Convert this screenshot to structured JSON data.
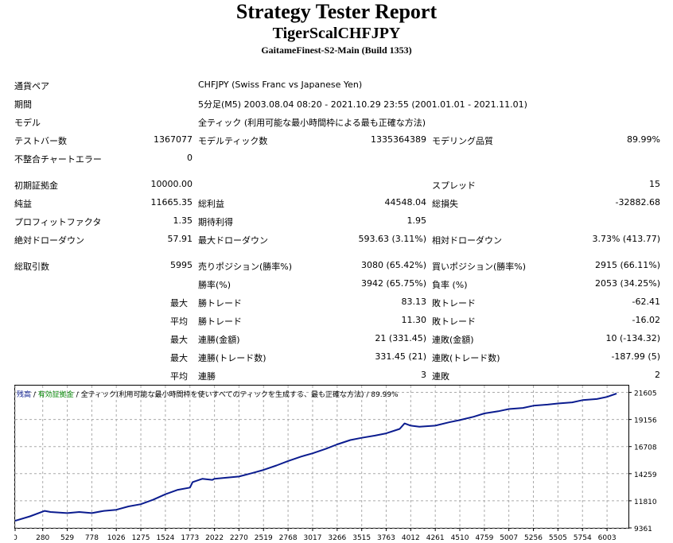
{
  "header": {
    "title": "Strategy Tester Report",
    "subtitle": "TigerScalCHFJPY",
    "build": "GaitameFinest-S2-Main (Build 1353)"
  },
  "info": {
    "symbol_label": "通貨ペア",
    "symbol_value": "CHFJPY (Swiss Franc vs Japanese Yen)",
    "period_label": "期間",
    "period_value": "5分足(M5) 2003.08.04 08:20 - 2021.10.29 23:55 (2001.01.01 - 2021.11.01)",
    "model_label": "モデル",
    "model_value": "全ティック (利用可能な最小時間枠による最も正確な方法)",
    "bars_label": "テストバー数",
    "bars_value": "1367077",
    "ticks_label": "モデルティック数",
    "ticks_value": "1335364389",
    "quality_label": "モデリング品質",
    "quality_value": "89.99%",
    "mismatch_label": "不整合チャートエラー",
    "mismatch_value": "0"
  },
  "results": {
    "deposit_label": "初期証拠金",
    "deposit_value": "10000.00",
    "spread_label": "スプレッド",
    "spread_value": "15",
    "net_label": "純益",
    "net_value": "11665.35",
    "gross_profit_label": "総利益",
    "gross_profit_value": "44548.04",
    "gross_loss_label": "総損失",
    "gross_loss_value": "-32882.68",
    "pf_label": "プロフィットファクタ",
    "pf_value": "1.35",
    "expected_label": "期待利得",
    "expected_value": "1.95",
    "abs_dd_label": "絶対ドローダウン",
    "abs_dd_value": "57.91",
    "max_dd_label": "最大ドローダウン",
    "max_dd_value": "593.63 (3.11%)",
    "rel_dd_label": "相対ドローダウン",
    "rel_dd_value": "3.73% (413.77)",
    "trades_label": "総取引数",
    "trades_value": "5995",
    "short_label": "売りポジション(勝率%)",
    "short_value": "3080 (65.42%)",
    "long_label": "買いポジション(勝率%)",
    "long_value": "2915 (66.11%)",
    "win_label": "勝率(%)",
    "win_value": "3942 (65.75%)",
    "loss_label": "負率 (%)",
    "loss_value": "2053 (34.25%)",
    "max_word": "最大",
    "avg_word": "平均",
    "largest_win_label": "勝トレード",
    "largest_win_value": "83.13",
    "largest_loss_label": "敗トレード",
    "largest_loss_value": "-62.41",
    "avg_win_label": "勝トレード",
    "avg_win_value": "11.30",
    "avg_loss_label": "敗トレード",
    "avg_loss_value": "-16.02",
    "cons_win_money_label": "連勝(金額)",
    "cons_win_money_value": "21 (331.45)",
    "cons_loss_money_label": "連敗(金額)",
    "cons_loss_money_value": "10 (-134.32)",
    "cons_win_profit_label": "連勝(トレード数)",
    "cons_win_profit_value": "331.45 (21)",
    "cons_loss_profit_label": "連敗(トレード数)",
    "cons_loss_profit_value": "-187.99 (5)",
    "avg_cons_win_label": "連勝",
    "avg_cons_win_value": "3",
    "avg_cons_loss_label": "連敗",
    "avg_cons_loss_value": "2"
  },
  "chart_data": {
    "type": "line",
    "legend": {
      "balance": "残高",
      "sep1": " / ",
      "equity": "有効証拠金",
      "sep2": " / ",
      "ticks": "全ティック(利用可能な最小時間枠を使いすべてのティックを生成する、最も正確な方法)",
      "sep3": " / ",
      "quality": "89.99%"
    },
    "x_ticks": [
      "0",
      "280",
      "529",
      "778",
      "1026",
      "1275",
      "1524",
      "1773",
      "2022",
      "2270",
      "2519",
      "2768",
      "3017",
      "3266",
      "3515",
      "3763",
      "4012",
      "4261",
      "4510",
      "4759",
      "5007",
      "5256",
      "5505",
      "5754",
      "6003"
    ],
    "y_ticks": [
      "21605",
      "19156",
      "16708",
      "14259",
      "11810",
      "9361"
    ],
    "ylim": [
      9361,
      22217
    ],
    "xlim": [
      0,
      6220
    ],
    "series": [
      {
        "color": "#0b1c8f",
        "points": [
          [
            0,
            10000
          ],
          [
            150,
            10400
          ],
          [
            300,
            10900
          ],
          [
            360,
            10800
          ],
          [
            529,
            10700
          ],
          [
            650,
            10800
          ],
          [
            778,
            10700
          ],
          [
            900,
            10900
          ],
          [
            1026,
            11000
          ],
          [
            1150,
            11300
          ],
          [
            1275,
            11500
          ],
          [
            1400,
            11900
          ],
          [
            1524,
            12400
          ],
          [
            1650,
            12800
          ],
          [
            1773,
            13000
          ],
          [
            1800,
            13500
          ],
          [
            1900,
            13800
          ],
          [
            2000,
            13700
          ],
          [
            2022,
            13800
          ],
          [
            2150,
            13900
          ],
          [
            2270,
            14000
          ],
          [
            2400,
            14300
          ],
          [
            2519,
            14600
          ],
          [
            2650,
            15000
          ],
          [
            2768,
            15400
          ],
          [
            2900,
            15800
          ],
          [
            3017,
            16100
          ],
          [
            3150,
            16500
          ],
          [
            3266,
            16900
          ],
          [
            3400,
            17300
          ],
          [
            3515,
            17500
          ],
          [
            3650,
            17700
          ],
          [
            3763,
            17900
          ],
          [
            3900,
            18300
          ],
          [
            3950,
            18800
          ],
          [
            4012,
            18600
          ],
          [
            4100,
            18500
          ],
          [
            4261,
            18600
          ],
          [
            4400,
            18900
          ],
          [
            4510,
            19100
          ],
          [
            4650,
            19400
          ],
          [
            4759,
            19700
          ],
          [
            4900,
            19900
          ],
          [
            5007,
            20100
          ],
          [
            5150,
            20200
          ],
          [
            5256,
            20400
          ],
          [
            5400,
            20500
          ],
          [
            5505,
            20600
          ],
          [
            5650,
            20700
          ],
          [
            5754,
            20900
          ],
          [
            5900,
            21000
          ],
          [
            6003,
            21200
          ],
          [
            6100,
            21500
          ]
        ]
      }
    ]
  }
}
